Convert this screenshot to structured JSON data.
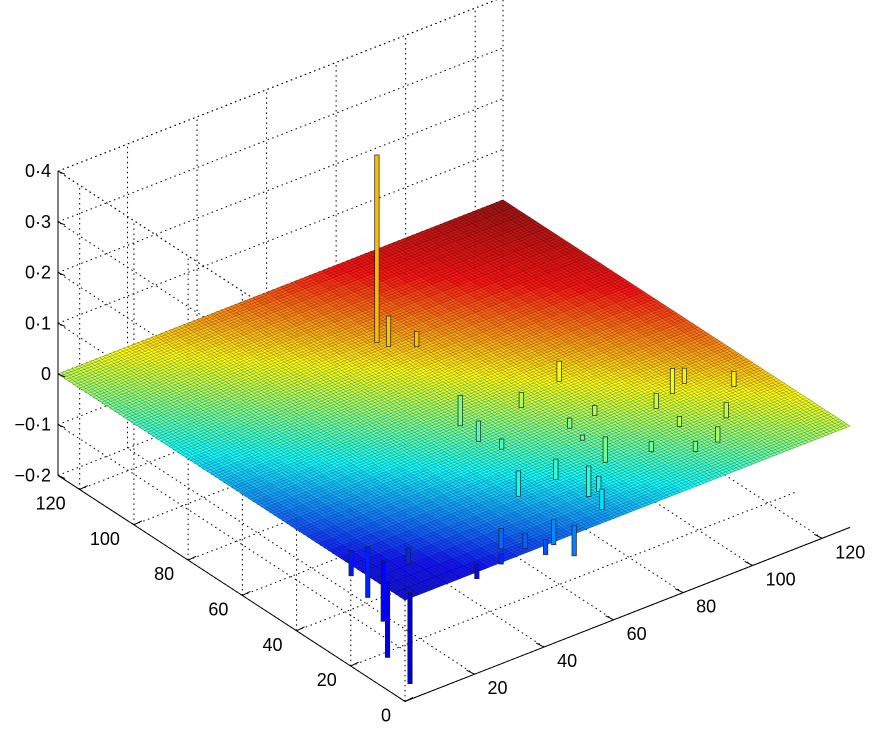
{
  "chart_data": {
    "type": "surface3d",
    "title": "",
    "xlabel": "",
    "ylabel": "",
    "zlabel": "",
    "xlim": [
      0,
      128
    ],
    "ylim": [
      0,
      128
    ],
    "zlim": [
      -0.2,
      0.4
    ],
    "grid": true,
    "colormap": "jet",
    "colormap_stops": [
      "#00008f",
      "#0000ff",
      "#00ffff",
      "#ffff00",
      "#ff0000",
      "#800000"
    ],
    "x_ticks": [
      {
        "value": 20,
        "label": "20"
      },
      {
        "value": 40,
        "label": "40"
      },
      {
        "value": 60,
        "label": "60"
      },
      {
        "value": 80,
        "label": "80"
      },
      {
        "value": 100,
        "label": "100"
      },
      {
        "value": 120,
        "label": "120"
      }
    ],
    "y_ticks": [
      {
        "value": 0,
        "label": "0"
      },
      {
        "value": 20,
        "label": "20"
      },
      {
        "value": 40,
        "label": "40"
      },
      {
        "value": 60,
        "label": "60"
      },
      {
        "value": 80,
        "label": "80"
      },
      {
        "value": 100,
        "label": "100"
      },
      {
        "value": 120,
        "label": "120"
      }
    ],
    "z_ticks": [
      {
        "value": -0.2,
        "label": "−0·2"
      },
      {
        "value": -0.1,
        "label": "−0·1"
      },
      {
        "value": 0,
        "label": "0"
      },
      {
        "value": 0.1,
        "label": "0·1"
      },
      {
        "value": 0.2,
        "label": "0·2"
      },
      {
        "value": 0.3,
        "label": "0·3"
      },
      {
        "value": 0.4,
        "label": "0·4"
      }
    ],
    "base_surface_z": 0,
    "spikes": [
      {
        "x": 66,
        "y": 95,
        "z": 0.37
      },
      {
        "x": 67,
        "y": 92,
        "z": 0.06
      },
      {
        "x": 72,
        "y": 88,
        "z": 0.03
      },
      {
        "x": 88,
        "y": 56,
        "z": 0.04
      },
      {
        "x": 110,
        "y": 38,
        "z": 0.03
      },
      {
        "x": 105,
        "y": 36,
        "z": 0.05
      },
      {
        "x": 118,
        "y": 30,
        "z": 0.03
      },
      {
        "x": 98,
        "y": 33,
        "z": 0.03
      },
      {
        "x": 100,
        "y": 27,
        "z": -0.02
      },
      {
        "x": 108,
        "y": 20,
        "z": 0.03
      },
      {
        "x": 104,
        "y": 18,
        "z": -0.03
      },
      {
        "x": 96,
        "y": 16,
        "z": -0.02
      },
      {
        "x": 88,
        "y": 22,
        "z": -0.02
      },
      {
        "x": 85,
        "y": 39,
        "z": 0.02
      },
      {
        "x": 74,
        "y": 52,
        "z": 0.03
      },
      {
        "x": 77,
        "y": 38,
        "z": 0.02
      },
      {
        "x": 76,
        "y": 32,
        "z": 0.01
      },
      {
        "x": 81,
        "y": 30,
        "z": -0.05
      },
      {
        "x": 70,
        "y": 22,
        "z": -0.06
      },
      {
        "x": 69,
        "y": 17,
        "z": -0.03
      },
      {
        "x": 66,
        "y": 12,
        "z": -0.04
      },
      {
        "x": 66,
        "y": 29,
        "z": -0.04
      },
      {
        "x": 57,
        "y": 46,
        "z": 0.04
      },
      {
        "x": 58,
        "y": 54,
        "z": 0.06
      },
      {
        "x": 59,
        "y": 40,
        "z": 0.02
      },
      {
        "x": 56,
        "y": 30,
        "z": -0.05
      },
      {
        "x": 49,
        "y": 8,
        "z": -0.05
      },
      {
        "x": 37,
        "y": 12,
        "z": -0.04
      },
      {
        "x": 40,
        "y": 7,
        "z": -0.03
      },
      {
        "x": 42,
        "y": 2,
        "z": -0.03
      },
      {
        "x": 51,
        "y": 3,
        "z": -0.06
      },
      {
        "x": 3,
        "y": 2,
        "z": -0.18
      },
      {
        "x": 2,
        "y": 9,
        "z": -0.15
      },
      {
        "x": 7,
        "y": 17,
        "z": -0.12
      },
      {
        "x": 8,
        "y": 24,
        "z": -0.1
      },
      {
        "x": 4,
        "y": 25,
        "z": -0.05
      },
      {
        "x": 15,
        "y": 18,
        "z": -0.03
      },
      {
        "x": 23,
        "y": 3,
        "z": -0.03
      },
      {
        "x": 30,
        "y": 3,
        "z": -0.02
      }
    ]
  }
}
